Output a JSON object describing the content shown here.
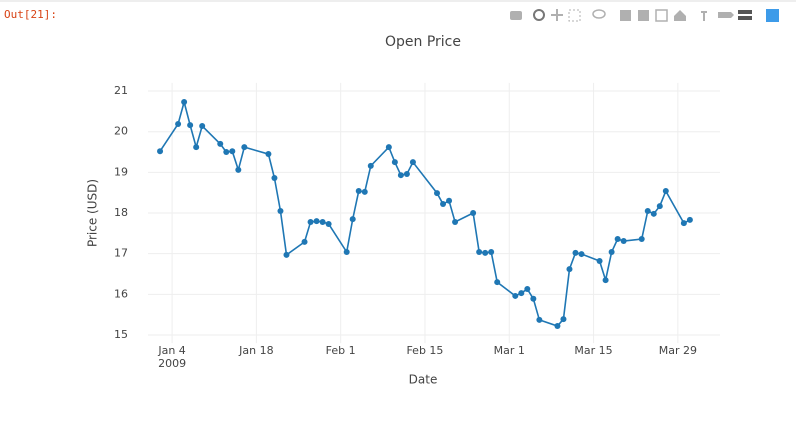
{
  "prompt": "Out[21]:",
  "chart_data": {
    "type": "line",
    "title": "Open Price",
    "x_label": "Date",
    "y_label": "Price (USD)",
    "color": "#1f77b4",
    "grid": true,
    "x": [
      "2009-01-02",
      "2009-01-05",
      "2009-01-06",
      "2009-01-07",
      "2009-01-08",
      "2009-01-09",
      "2009-01-12",
      "2009-01-13",
      "2009-01-14",
      "2009-01-15",
      "2009-01-16",
      "2009-01-20",
      "2009-01-21",
      "2009-01-22",
      "2009-01-23",
      "2009-01-26",
      "2009-01-27",
      "2009-01-28",
      "2009-01-29",
      "2009-01-30",
      "2009-02-02",
      "2009-02-03",
      "2009-02-04",
      "2009-02-05",
      "2009-02-06",
      "2009-02-09",
      "2009-02-10",
      "2009-02-11",
      "2009-02-12",
      "2009-02-13",
      "2009-02-17",
      "2009-02-18",
      "2009-02-19",
      "2009-02-20",
      "2009-02-23",
      "2009-02-24",
      "2009-02-25",
      "2009-02-26",
      "2009-02-27",
      "2009-03-02",
      "2009-03-03",
      "2009-03-04",
      "2009-03-05",
      "2009-03-06",
      "2009-03-09",
      "2009-03-10",
      "2009-03-11",
      "2009-03-12",
      "2009-03-13",
      "2009-03-16",
      "2009-03-17",
      "2009-03-18",
      "2009-03-19",
      "2009-03-20",
      "2009-03-23",
      "2009-03-24",
      "2009-03-25",
      "2009-03-26",
      "2009-03-27",
      "2009-03-30",
      "2009-03-31"
    ],
    "values": [
      19.52,
      20.19,
      20.73,
      20.16,
      19.62,
      20.14,
      19.7,
      19.5,
      19.52,
      19.06,
      19.62,
      19.45,
      18.86,
      18.05,
      16.97,
      17.29,
      17.78,
      17.8,
      17.78,
      17.73,
      17.04,
      17.85,
      18.54,
      18.52,
      19.16,
      19.62,
      19.25,
      18.93,
      18.96,
      19.25,
      18.49,
      18.22,
      18.3,
      17.78,
      18.0,
      17.04,
      17.02,
      17.04,
      16.3,
      15.96,
      16.03,
      16.13,
      15.89,
      15.37,
      15.22,
      15.39,
      16.62,
      17.02,
      16.99,
      16.82,
      16.35,
      17.04,
      17.36,
      17.31,
      17.36,
      18.05,
      17.98,
      18.17,
      18.54,
      17.75,
      17.83
    ],
    "xlim": [
      "2008-12-31",
      "2009-04-05"
    ],
    "xticks": [
      {
        "value": "2009-01-04",
        "label": "Jan 4\n2009"
      },
      {
        "value": "2009-01-18",
        "label": "Jan 18"
      },
      {
        "value": "2009-02-01",
        "label": "Feb 1"
      },
      {
        "value": "2009-02-15",
        "label": "Feb 15"
      },
      {
        "value": "2009-03-01",
        "label": "Mar 1"
      },
      {
        "value": "2009-03-15",
        "label": "Mar 15"
      },
      {
        "value": "2009-03-29",
        "label": "Mar 29"
      }
    ],
    "ylim": [
      14.8,
      21.2
    ],
    "yticks": [
      15,
      16,
      17,
      18,
      19,
      20,
      21
    ]
  }
}
